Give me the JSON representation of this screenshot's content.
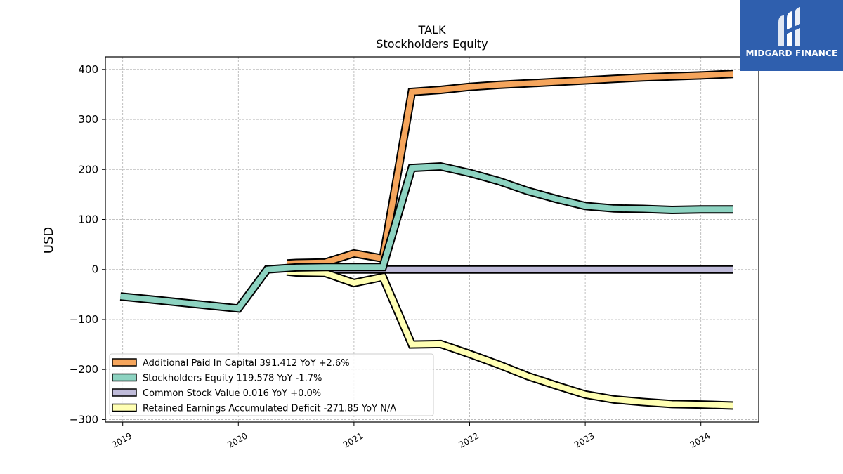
{
  "chart_data": {
    "type": "line",
    "title": "TALK",
    "subtitle": "Stockholders  Equity",
    "ylabel": "USD",
    "xlabel": "",
    "ylim": [
      -305,
      425
    ],
    "xlim": [
      2018.85,
      2024.5
    ],
    "yticks": [
      400,
      300,
      200,
      100,
      0,
      -100,
      -200,
      -300
    ],
    "ytick_labels": [
      "400",
      "300",
      "200",
      "100",
      "0",
      "−100",
      "−200",
      "−300"
    ],
    "xticks": [
      2019,
      2020,
      2021,
      2022,
      2023,
      2024
    ],
    "xtick_labels": [
      "2019",
      "2020",
      "2021",
      "2022",
      "2023",
      "2024"
    ],
    "grid": true,
    "legend_position": "lower-left",
    "series": [
      {
        "name": "Additional Paid In Capital",
        "legend": "Additional Paid In Capital  391.412 YoY +2.6%",
        "color": "#f5a55c",
        "x": [
          2020.42,
          2020.5,
          2020.75,
          2021.0,
          2021.25,
          2021.5,
          2021.75,
          2022.0,
          2022.25,
          2022.5,
          2022.75,
          2023.0,
          2023.25,
          2023.5,
          2023.75,
          2024.0,
          2024.28
        ],
        "values": [
          12,
          13,
          14,
          32,
          22,
          355,
          359,
          365,
          369,
          372,
          375,
          378,
          381,
          384,
          386,
          388,
          391
        ]
      },
      {
        "name": "Stockholders Equity",
        "legend": "Stockholders Equity  119.578 YoY -1.7%",
        "color": "#8dd3c1",
        "x": [
          2018.98,
          2019.25,
          2019.5,
          2019.75,
          2020.0,
          2020.25,
          2020.5,
          2020.75,
          2021.0,
          2021.25,
          2021.5,
          2021.75,
          2022.0,
          2022.25,
          2022.5,
          2022.75,
          2023.0,
          2023.25,
          2023.5,
          2023.75,
          2024.0,
          2024.28
        ],
        "values": [
          -54,
          -60,
          -66,
          -72,
          -78,
          0,
          4,
          5,
          5,
          5,
          203,
          206,
          193,
          177,
          157,
          141,
          127,
          122,
          121,
          119,
          120,
          120
        ]
      },
      {
        "name": "Common Stock Value",
        "legend": "Common Stock Value  0.016 YoY +0.0%",
        "color": "#bfbbd9",
        "x": [
          2020.42,
          2020.75,
          2021.0,
          2021.5,
          2022.0,
          2022.5,
          2023.0,
          2023.5,
          2024.0,
          2024.28
        ],
        "values": [
          0,
          0,
          0,
          0,
          0,
          0,
          0,
          0,
          0,
          0
        ]
      },
      {
        "name": "Retained Earnings Accumulated Deficit",
        "legend": "Retained Earnings Accumulated Deficit  -271.85 YoY N/A",
        "color": "#ffffb3",
        "x": [
          2020.42,
          2020.5,
          2020.75,
          2021.0,
          2021.25,
          2021.5,
          2021.75,
          2022.0,
          2022.25,
          2022.5,
          2022.75,
          2023.0,
          2023.25,
          2023.5,
          2023.75,
          2024.0,
          2024.28
        ],
        "values": [
          -4,
          -6,
          -7,
          -27,
          -15,
          -150,
          -149,
          -169,
          -190,
          -213,
          -232,
          -250,
          -260,
          -265,
          -269,
          -270,
          -272
        ]
      }
    ]
  },
  "logo": {
    "text": "MIDGARD FINANCE",
    "background": "#2f5fae"
  }
}
